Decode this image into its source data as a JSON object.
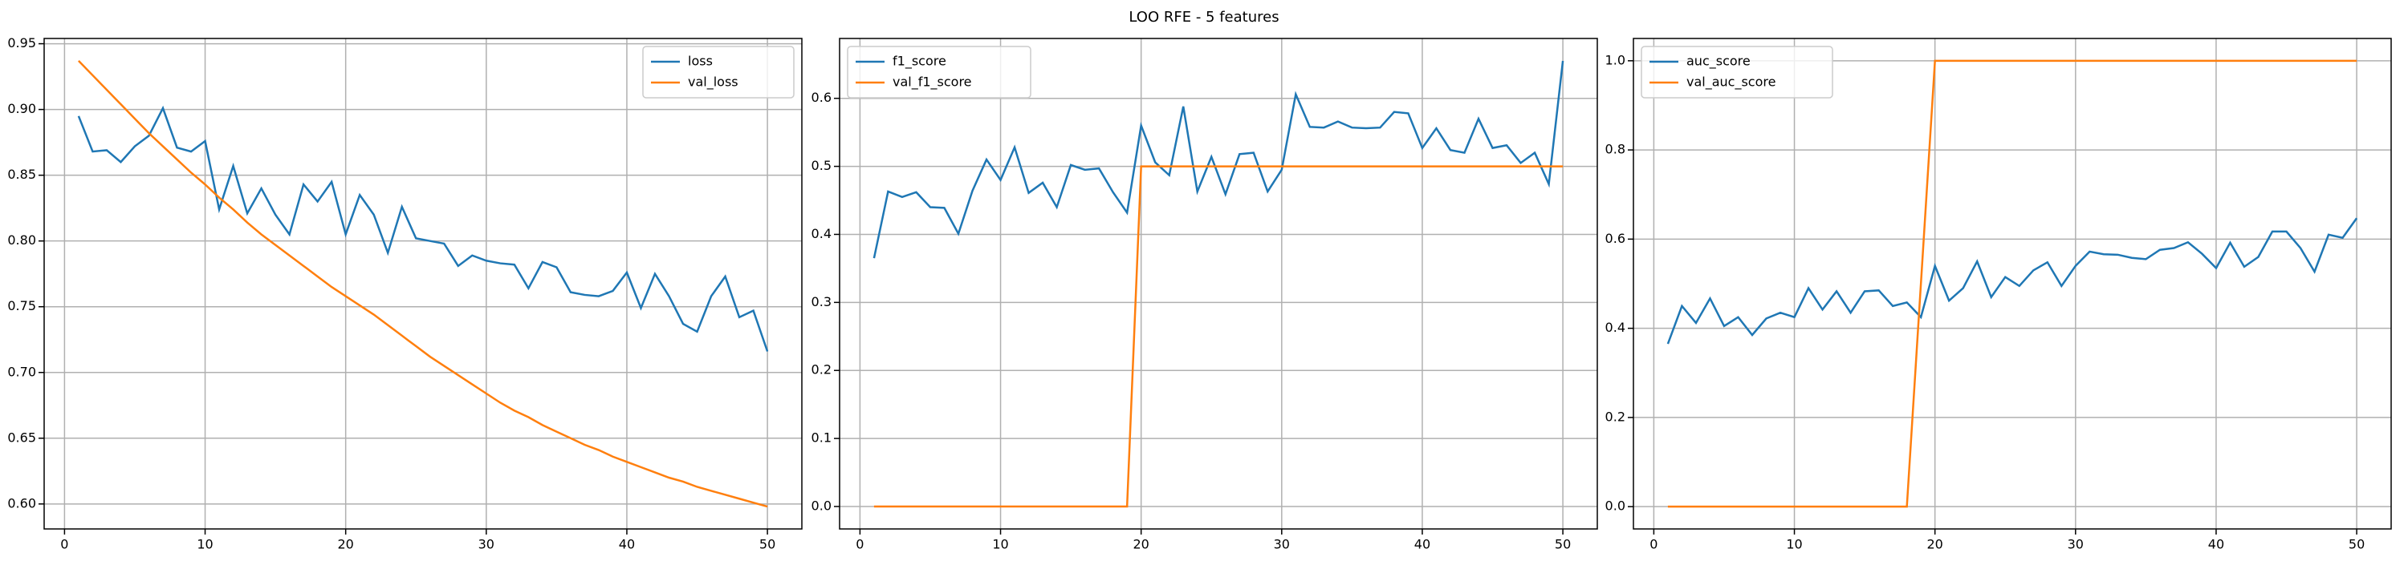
{
  "title": "LOO RFE - 5 features",
  "chart_data": [
    {
      "type": "line",
      "legend": "upper right",
      "grid": true,
      "x": [
        1,
        2,
        3,
        4,
        5,
        6,
        7,
        8,
        9,
        10,
        11,
        12,
        13,
        14,
        15,
        16,
        17,
        18,
        19,
        20,
        21,
        22,
        23,
        24,
        25,
        26,
        27,
        28,
        29,
        30,
        31,
        32,
        33,
        34,
        35,
        36,
        37,
        38,
        39,
        40,
        41,
        42,
        43,
        44,
        45,
        46,
        47,
        48,
        49,
        50
      ],
      "xlim": [
        -1.45,
        52.45
      ],
      "xticks": [
        0,
        10,
        20,
        30,
        40,
        50
      ],
      "ylim": [
        0.581,
        0.954
      ],
      "yticks": [
        {
          "value": 0.6,
          "label": "0.60"
        },
        {
          "value": 0.65,
          "label": "0.65"
        },
        {
          "value": 0.7,
          "label": "0.70"
        },
        {
          "value": 0.75,
          "label": "0.75"
        },
        {
          "value": 0.8,
          "label": "0.80"
        },
        {
          "value": 0.85,
          "label": "0.85"
        },
        {
          "value": 0.9,
          "label": "0.90"
        },
        {
          "value": 0.95,
          "label": "0.95"
        }
      ],
      "series": [
        {
          "name": "loss",
          "color": "#1f77b4",
          "values": [
            0.895,
            0.868,
            0.869,
            0.86,
            0.872,
            0.88,
            0.901,
            0.871,
            0.868,
            0.876,
            0.824,
            0.857,
            0.821,
            0.84,
            0.82,
            0.805,
            0.843,
            0.83,
            0.845,
            0.805,
            0.835,
            0.82,
            0.791,
            0.826,
            0.802,
            0.8,
            0.798,
            0.781,
            0.789,
            0.785,
            0.783,
            0.782,
            0.764,
            0.784,
            0.78,
            0.761,
            0.759,
            0.758,
            0.762,
            0.776,
            0.749,
            0.775,
            0.758,
            0.737,
            0.731,
            0.758,
            0.773,
            0.742,
            0.747,
            0.716
          ]
        },
        {
          "name": "val_loss",
          "color": "#ff7f0e",
          "values": [
            0.937,
            0.926,
            0.915,
            0.904,
            0.893,
            0.882,
            0.872,
            0.862,
            0.852,
            0.843,
            0.833,
            0.824,
            0.814,
            0.805,
            0.797,
            0.789,
            0.781,
            0.773,
            0.765,
            0.758,
            0.751,
            0.744,
            0.736,
            0.728,
            0.72,
            0.712,
            0.705,
            0.698,
            0.691,
            0.684,
            0.677,
            0.671,
            0.666,
            0.66,
            0.655,
            0.65,
            0.645,
            0.641,
            0.636,
            0.632,
            0.628,
            0.624,
            0.62,
            0.617,
            0.613,
            0.61,
            0.607,
            0.604,
            0.601,
            0.598
          ]
        }
      ]
    },
    {
      "type": "line",
      "legend": "upper left",
      "grid": true,
      "x": [
        1,
        2,
        3,
        4,
        5,
        6,
        7,
        8,
        9,
        10,
        11,
        12,
        13,
        14,
        15,
        16,
        17,
        18,
        19,
        20,
        21,
        22,
        23,
        24,
        25,
        26,
        27,
        28,
        29,
        30,
        31,
        32,
        33,
        34,
        35,
        36,
        37,
        38,
        39,
        40,
        41,
        42,
        43,
        44,
        45,
        46,
        47,
        48,
        49,
        50
      ],
      "xlim": [
        -1.45,
        52.45
      ],
      "xticks": [
        0,
        10,
        20,
        30,
        40,
        50
      ],
      "ylim": [
        -0.033,
        0.688
      ],
      "yticks": [
        {
          "value": 0,
          "label": "0.0"
        },
        {
          "value": 0.1,
          "label": "0.1"
        },
        {
          "value": 0.2,
          "label": "0.2"
        },
        {
          "value": 0.3,
          "label": "0.3"
        },
        {
          "value": 0.4,
          "label": "0.4"
        },
        {
          "value": 0.5,
          "label": "0.5"
        },
        {
          "value": 0.6,
          "label": "0.6"
        }
      ],
      "series": [
        {
          "name": "f1_score",
          "color": "#1f77b4",
          "values": [
            0.365,
            0.463,
            0.455,
            0.462,
            0.44,
            0.439,
            0.401,
            0.464,
            0.51,
            0.48,
            0.528,
            0.461,
            0.476,
            0.44,
            0.502,
            0.495,
            0.497,
            0.462,
            0.432,
            0.56,
            0.506,
            0.487,
            0.588,
            0.463,
            0.514,
            0.459,
            0.518,
            0.52,
            0.463,
            0.495,
            0.606,
            0.558,
            0.557,
            0.566,
            0.557,
            0.556,
            0.557,
            0.58,
            0.578,
            0.527,
            0.556,
            0.524,
            0.52,
            0.57,
            0.527,
            0.531,
            0.505,
            0.52,
            0.474,
            0.655
          ]
        },
        {
          "name": "val_f1_score",
          "color": "#ff7f0e",
          "values": [
            0,
            0,
            0,
            0,
            0,
            0,
            0,
            0,
            0,
            0,
            0,
            0,
            0,
            0,
            0,
            0,
            0,
            0,
            0,
            0.5,
            0.5,
            0.5,
            0.5,
            0.5,
            0.5,
            0.5,
            0.5,
            0.5,
            0.5,
            0.5,
            0.5,
            0.5,
            0.5,
            0.5,
            0.5,
            0.5,
            0.5,
            0.5,
            0.5,
            0.5,
            0.5,
            0.5,
            0.5,
            0.5,
            0.5,
            0.5,
            0.5,
            0.5,
            0.5,
            0.5
          ]
        }
      ]
    },
    {
      "type": "line",
      "legend": "upper left",
      "grid": true,
      "x": [
        1,
        2,
        3,
        4,
        5,
        6,
        7,
        8,
        9,
        10,
        11,
        12,
        13,
        14,
        15,
        16,
        17,
        18,
        19,
        20,
        21,
        22,
        23,
        24,
        25,
        26,
        27,
        28,
        29,
        30,
        31,
        32,
        33,
        34,
        35,
        36,
        37,
        38,
        39,
        40,
        41,
        42,
        43,
        44,
        45,
        46,
        47,
        48,
        49,
        50
      ],
      "xlim": [
        -1.45,
        52.45
      ],
      "xticks": [
        0,
        10,
        20,
        30,
        40,
        50
      ],
      "ylim": [
        -0.05,
        1.05
      ],
      "yticks": [
        {
          "value": 0,
          "label": "0.0"
        },
        {
          "value": 0.2,
          "label": "0.2"
        },
        {
          "value": 0.4,
          "label": "0.4"
        },
        {
          "value": 0.6,
          "label": "0.6"
        },
        {
          "value": 0.8,
          "label": "0.8"
        },
        {
          "value": 1,
          "label": "1.0"
        }
      ],
      "series": [
        {
          "name": "auc_score",
          "color": "#1f77b4",
          "values": [
            0.365,
            0.45,
            0.412,
            0.467,
            0.405,
            0.425,
            0.385,
            0.422,
            0.435,
            0.425,
            0.49,
            0.442,
            0.483,
            0.435,
            0.483,
            0.485,
            0.45,
            0.458,
            0.425,
            0.54,
            0.462,
            0.49,
            0.55,
            0.47,
            0.515,
            0.495,
            0.53,
            0.548,
            0.495,
            0.54,
            0.572,
            0.566,
            0.565,
            0.558,
            0.555,
            0.576,
            0.58,
            0.593,
            0.567,
            0.535,
            0.592,
            0.538,
            0.56,
            0.617,
            0.617,
            0.58,
            0.527,
            0.61,
            0.603,
            0.647
          ]
        },
        {
          "name": "val_auc_score",
          "color": "#ff7f0e",
          "values": [
            0,
            0,
            0,
            0,
            0,
            0,
            0,
            0,
            0,
            0,
            0,
            0,
            0,
            0,
            0,
            0,
            0,
            0,
            0.5,
            1,
            1,
            1,
            1,
            1,
            1,
            1,
            1,
            1,
            1,
            1,
            1,
            1,
            1,
            1,
            1,
            1,
            1,
            1,
            1,
            1,
            1,
            1,
            1,
            1,
            1,
            1,
            1,
            1,
            1,
            1
          ]
        }
      ]
    }
  ]
}
